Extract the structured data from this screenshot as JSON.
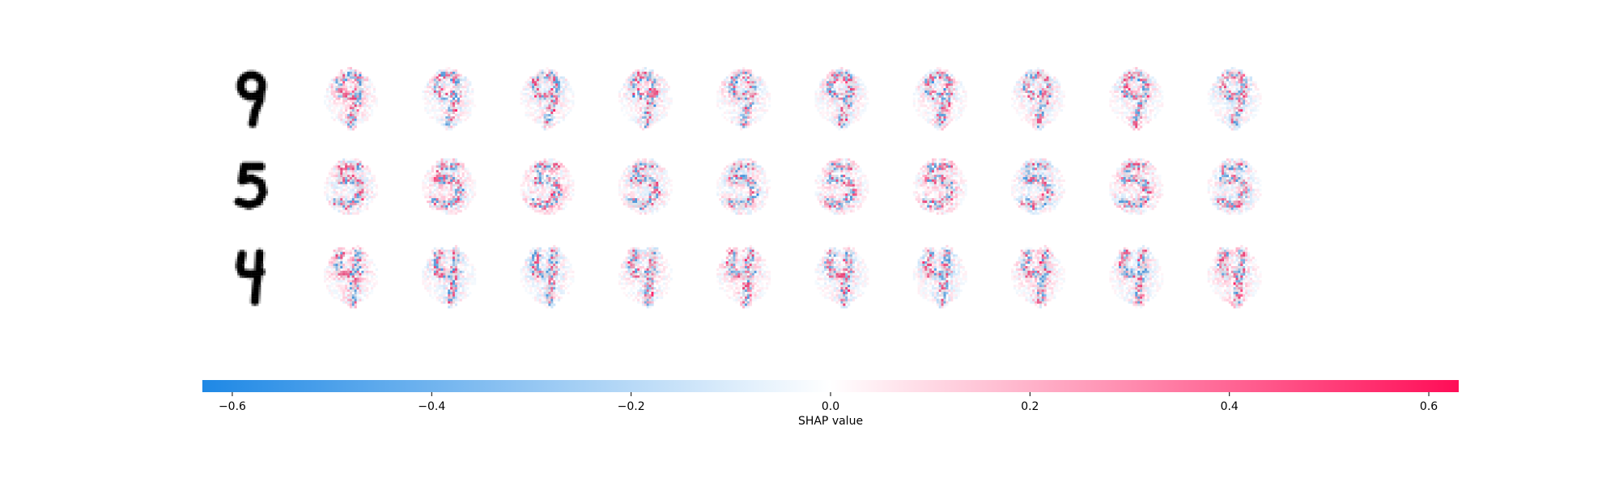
{
  "chart_data": {
    "type": "heatmap",
    "title": "",
    "rows": 3,
    "columns_per_row": 10,
    "original_digits": [
      "9",
      "5",
      "4"
    ],
    "colorbar": {
      "label": "SHAP value",
      "range": [
        -0.63,
        0.63
      ],
      "ticks": [
        -0.6,
        -0.4,
        -0.2,
        0.0,
        0.2,
        0.4,
        0.6
      ],
      "tick_labels": [
        "−0.6",
        "−0.4",
        "−0.2",
        "0.0",
        "0.2",
        "0.4",
        "0.6"
      ],
      "negative_color": "#1E88E5",
      "zero_color": "#FFFFFF",
      "positive_color": "#FF0D57"
    }
  }
}
